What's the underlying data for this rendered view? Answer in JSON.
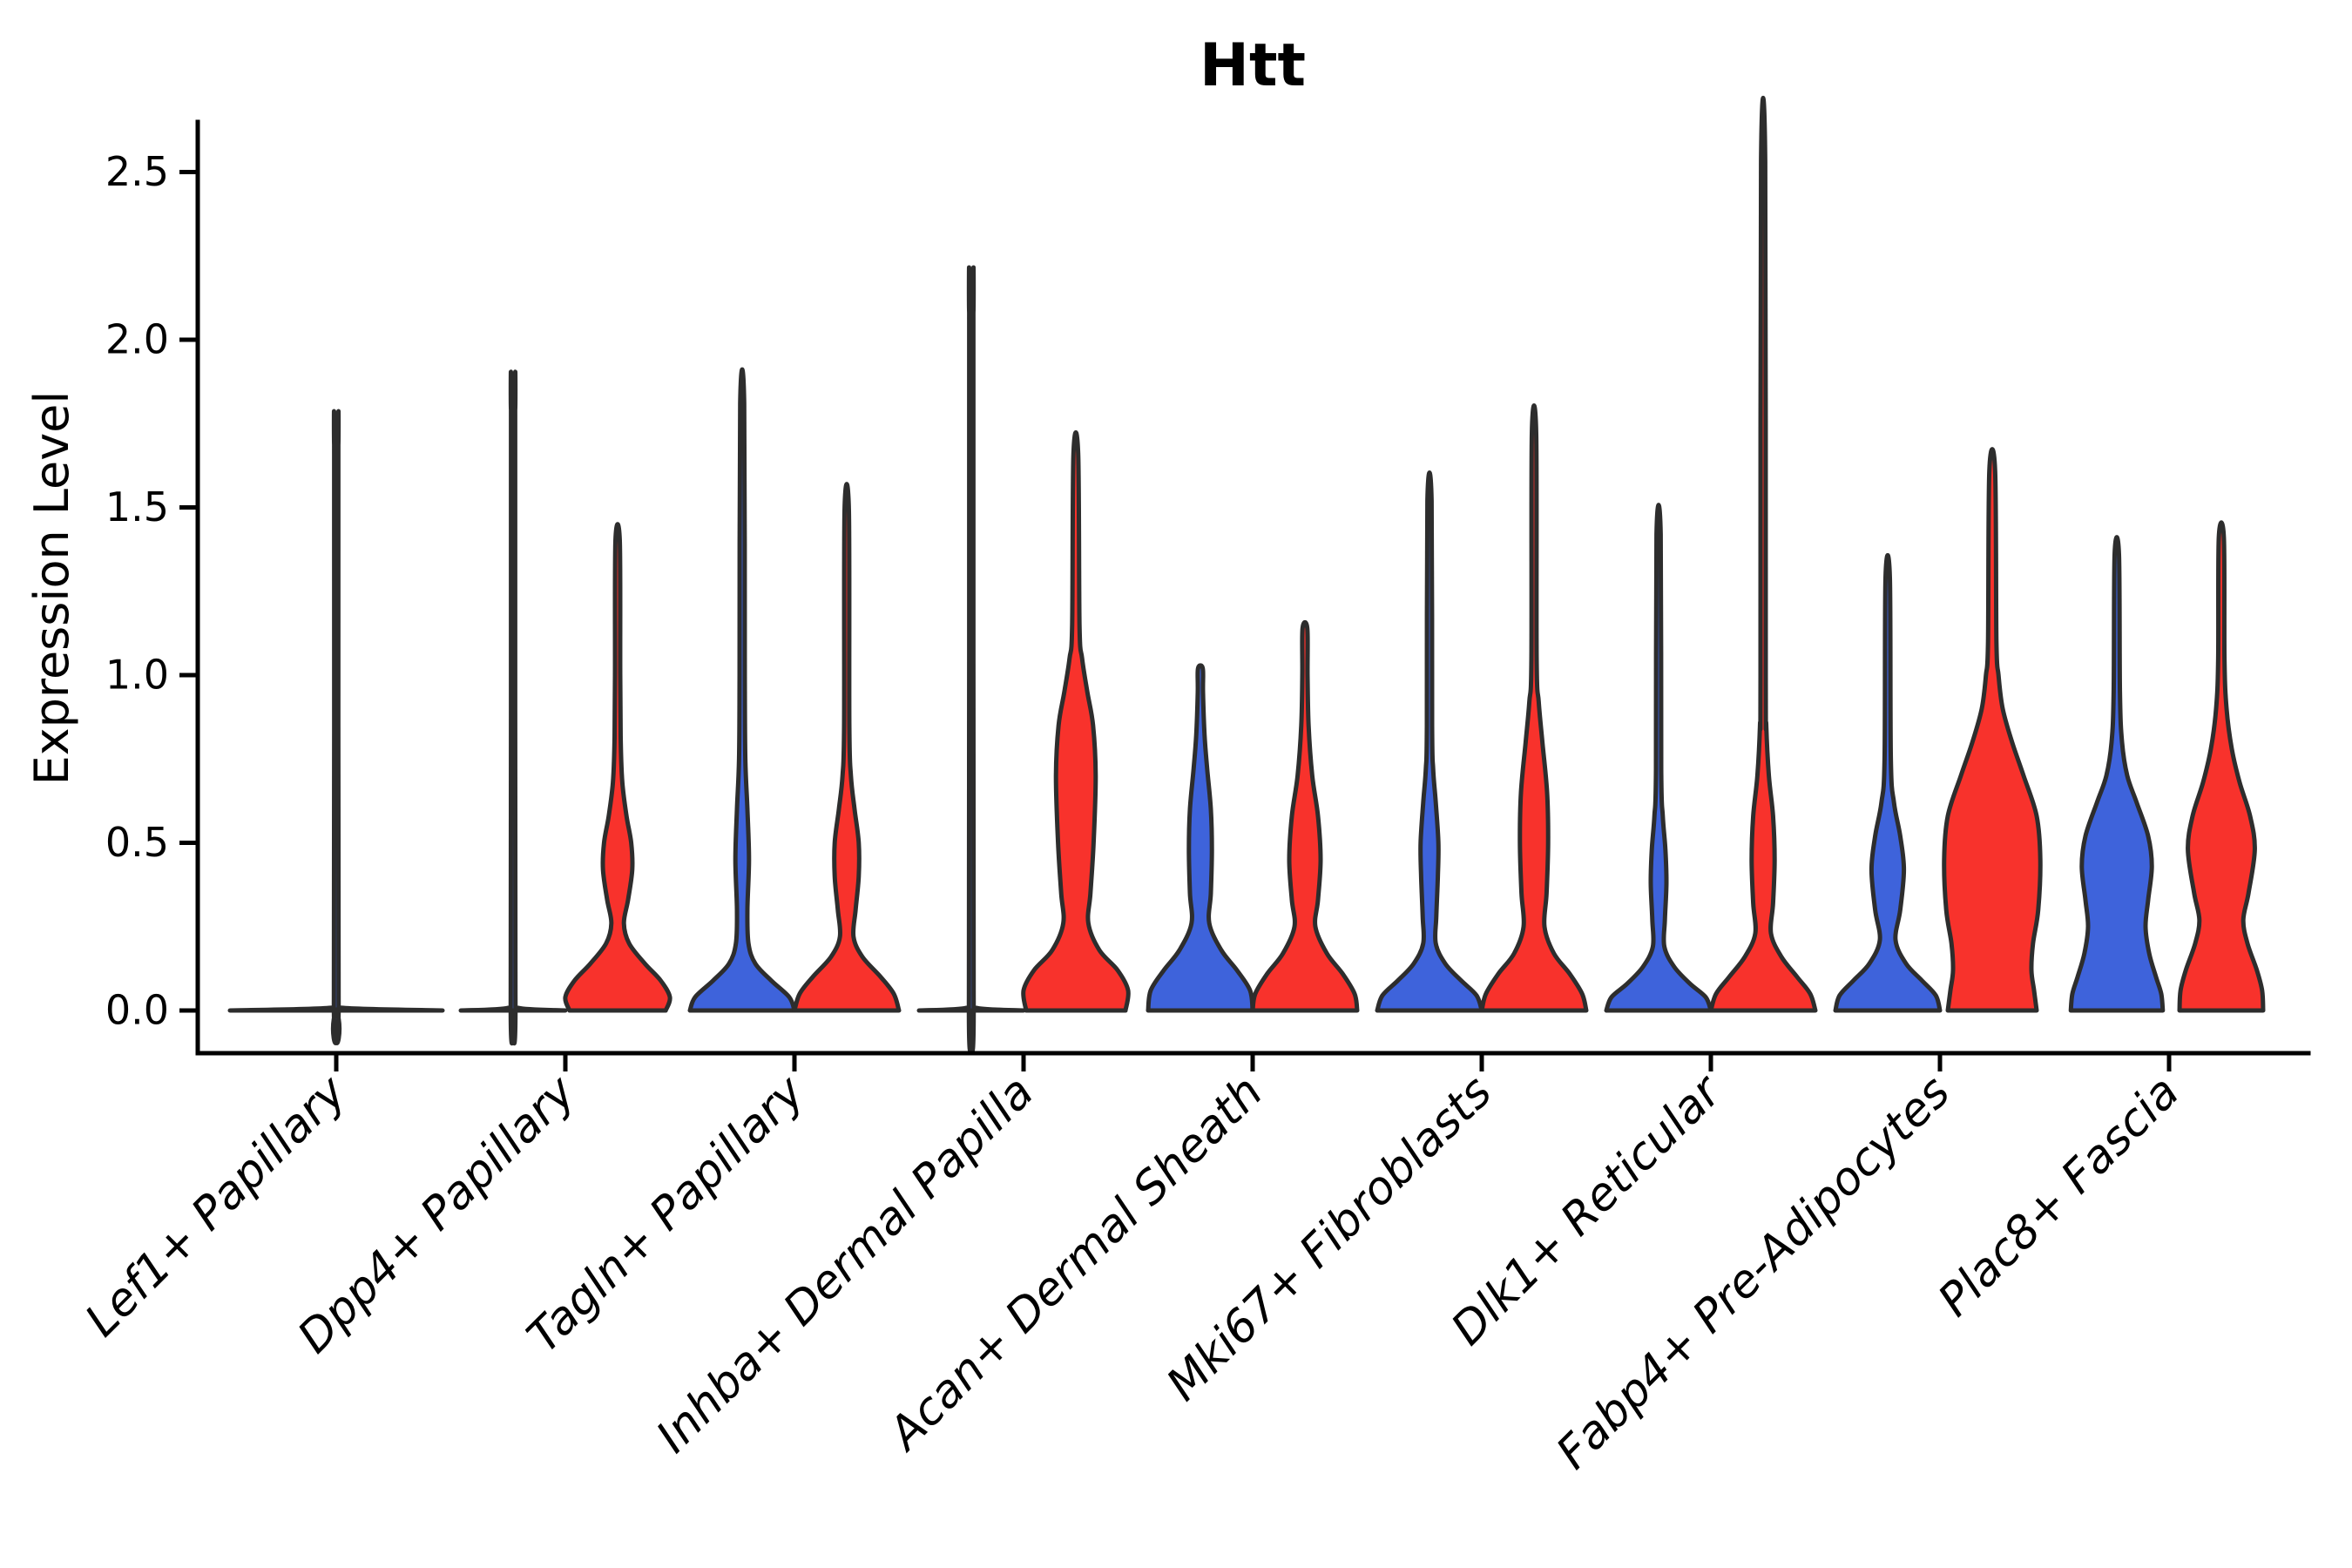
{
  "figure": {
    "title": "Htt",
    "ylabel": "Expression Level"
  },
  "colors": {
    "group_blue": "#3E63DB",
    "group_red": "#F8322C",
    "violin_outline": "#2d2d2d",
    "axis": "#000000",
    "background": "#ffffff"
  },
  "chart_data": {
    "type": "violin",
    "title": "Htt",
    "xlabel": "",
    "ylabel": "Expression Level",
    "yticks": [
      "0.0",
      "0.5",
      "1.0",
      "1.5",
      "2.0",
      "2.5"
    ],
    "ytick_values": [
      0.0,
      0.5,
      1.0,
      1.5,
      2.0,
      2.5
    ],
    "ylim": [
      -0.13,
      2.65
    ],
    "grid": false,
    "legend": "none",
    "categories": [
      "Lef1+ Papillary",
      "Dpp4+ Papillary",
      "Tagln+ Papillary",
      "Inhba+ Dermal Papilla",
      "Acan+ Dermal Sheath",
      "Mki67+ Fibroblasts",
      "Dlk1+ Reticular",
      "Fabp4+ Pre-Adipocytes",
      "Plac8+ Fascia"
    ],
    "series": [
      {
        "name": "blue",
        "color": "#3E63DB"
      },
      {
        "name": "red",
        "color": "#F8322C"
      }
    ],
    "violins": [
      {
        "category": 0,
        "group": "single",
        "max_expression": 1.68,
        "profile": [
          [
            0,
            1.0
          ],
          [
            0.008,
            0.05
          ],
          [
            0.03,
            0.022
          ],
          [
            1.66,
            0.02
          ],
          [
            1.68,
            0.018
          ]
        ]
      },
      {
        "category": 1,
        "group": "blue",
        "max_expression": 1.79,
        "profile": [
          [
            0,
            1.0
          ],
          [
            0.008,
            0.09
          ],
          [
            0.04,
            0.045
          ],
          [
            1.77,
            0.04
          ],
          [
            1.79,
            0.038
          ]
        ]
      },
      {
        "category": 1,
        "group": "red",
        "max_expression": 1.4,
        "profile": [
          [
            0,
            0.92
          ],
          [
            0.04,
            1.0
          ],
          [
            0.09,
            0.82
          ],
          [
            0.14,
            0.52
          ],
          [
            0.2,
            0.22
          ],
          [
            0.26,
            0.12
          ],
          [
            0.33,
            0.2
          ],
          [
            0.42,
            0.28
          ],
          [
            0.5,
            0.26
          ],
          [
            0.58,
            0.17
          ],
          [
            0.68,
            0.09
          ],
          [
            0.8,
            0.06
          ],
          [
            1.0,
            0.05
          ],
          [
            1.4,
            0.042
          ]
        ]
      },
      {
        "category": 2,
        "group": "blue",
        "max_expression": 1.81,
        "profile": [
          [
            0,
            1.0
          ],
          [
            0.04,
            0.9
          ],
          [
            0.09,
            0.55
          ],
          [
            0.14,
            0.25
          ],
          [
            0.2,
            0.12
          ],
          [
            0.3,
            0.1
          ],
          [
            0.45,
            0.13
          ],
          [
            0.6,
            0.1
          ],
          [
            0.75,
            0.06
          ],
          [
            1.0,
            0.05
          ],
          [
            1.81,
            0.038
          ]
        ]
      },
      {
        "category": 2,
        "group": "red",
        "max_expression": 1.49,
        "profile": [
          [
            0,
            1.0
          ],
          [
            0.05,
            0.9
          ],
          [
            0.1,
            0.65
          ],
          [
            0.16,
            0.3
          ],
          [
            0.22,
            0.13
          ],
          [
            0.3,
            0.17
          ],
          [
            0.4,
            0.23
          ],
          [
            0.5,
            0.23
          ],
          [
            0.6,
            0.15
          ],
          [
            0.7,
            0.08
          ],
          [
            0.85,
            0.05
          ],
          [
            1.49,
            0.042
          ]
        ]
      },
      {
        "category": 3,
        "group": "blue",
        "max_expression": 2.08,
        "profile": [
          [
            0,
            1.0
          ],
          [
            0.008,
            0.09
          ],
          [
            0.04,
            0.045
          ],
          [
            2.06,
            0.04
          ],
          [
            2.08,
            0.038
          ]
        ]
      },
      {
        "category": 3,
        "group": "red",
        "max_expression": 1.66,
        "profile": [
          [
            0,
            0.95
          ],
          [
            0.06,
            1.0
          ],
          [
            0.12,
            0.8
          ],
          [
            0.18,
            0.45
          ],
          [
            0.26,
            0.24
          ],
          [
            0.35,
            0.28
          ],
          [
            0.5,
            0.34
          ],
          [
            0.7,
            0.38
          ],
          [
            0.85,
            0.33
          ],
          [
            0.95,
            0.22
          ],
          [
            1.05,
            0.12
          ],
          [
            1.15,
            0.07
          ],
          [
            1.66,
            0.045
          ]
        ]
      },
      {
        "category": 4,
        "group": "blue",
        "max_expression": 1.02,
        "profile": [
          [
            0,
            1.0
          ],
          [
            0.06,
            0.95
          ],
          [
            0.12,
            0.7
          ],
          [
            0.18,
            0.4
          ],
          [
            0.26,
            0.17
          ],
          [
            0.35,
            0.2
          ],
          [
            0.48,
            0.22
          ],
          [
            0.6,
            0.2
          ],
          [
            0.72,
            0.13
          ],
          [
            0.82,
            0.08
          ],
          [
            0.95,
            0.05
          ],
          [
            1.02,
            0.045
          ]
        ]
      },
      {
        "category": 4,
        "group": "red",
        "max_expression": 1.14,
        "profile": [
          [
            0,
            1.0
          ],
          [
            0.05,
            0.95
          ],
          [
            0.11,
            0.72
          ],
          [
            0.17,
            0.42
          ],
          [
            0.25,
            0.2
          ],
          [
            0.33,
            0.25
          ],
          [
            0.45,
            0.3
          ],
          [
            0.58,
            0.25
          ],
          [
            0.7,
            0.14
          ],
          [
            0.85,
            0.07
          ],
          [
            1.0,
            0.05
          ],
          [
            1.14,
            0.045
          ]
        ]
      },
      {
        "category": 5,
        "group": "blue",
        "max_expression": 1.52,
        "profile": [
          [
            0,
            1.0
          ],
          [
            0.045,
            0.9
          ],
          [
            0.09,
            0.6
          ],
          [
            0.14,
            0.3
          ],
          [
            0.2,
            0.12
          ],
          [
            0.28,
            0.13
          ],
          [
            0.4,
            0.16
          ],
          [
            0.5,
            0.17
          ],
          [
            0.62,
            0.12
          ],
          [
            0.72,
            0.07
          ],
          [
            0.85,
            0.05
          ],
          [
            1.52,
            0.04
          ]
        ]
      },
      {
        "category": 5,
        "group": "red",
        "max_expression": 1.72,
        "profile": [
          [
            0,
            1.0
          ],
          [
            0.05,
            0.92
          ],
          [
            0.11,
            0.68
          ],
          [
            0.17,
            0.38
          ],
          [
            0.25,
            0.2
          ],
          [
            0.35,
            0.24
          ],
          [
            0.5,
            0.27
          ],
          [
            0.65,
            0.25
          ],
          [
            0.8,
            0.16
          ],
          [
            0.92,
            0.09
          ],
          [
            1.05,
            0.05
          ],
          [
            1.72,
            0.042
          ]
        ]
      },
      {
        "category": 6,
        "group": "blue",
        "max_expression": 1.42,
        "profile": [
          [
            0,
            1.0
          ],
          [
            0.04,
            0.9
          ],
          [
            0.08,
            0.6
          ],
          [
            0.13,
            0.3
          ],
          [
            0.19,
            0.11
          ],
          [
            0.27,
            0.12
          ],
          [
            0.38,
            0.15
          ],
          [
            0.48,
            0.13
          ],
          [
            0.58,
            0.08
          ],
          [
            0.72,
            0.05
          ],
          [
            1.42,
            0.04
          ]
        ]
      },
      {
        "category": 6,
        "group": "red",
        "max_expression": 2.53,
        "profile": [
          [
            0,
            1.0
          ],
          [
            0.05,
            0.9
          ],
          [
            0.1,
            0.65
          ],
          [
            0.16,
            0.35
          ],
          [
            0.23,
            0.15
          ],
          [
            0.32,
            0.19
          ],
          [
            0.45,
            0.22
          ],
          [
            0.58,
            0.19
          ],
          [
            0.7,
            0.11
          ],
          [
            0.85,
            0.06
          ],
          [
            1.0,
            0.05
          ],
          [
            2.53,
            0.04
          ]
        ]
      },
      {
        "category": 7,
        "group": "blue",
        "max_expression": 1.29,
        "profile": [
          [
            0,
            1.0
          ],
          [
            0.045,
            0.92
          ],
          [
            0.09,
            0.65
          ],
          [
            0.14,
            0.35
          ],
          [
            0.21,
            0.15
          ],
          [
            0.3,
            0.24
          ],
          [
            0.42,
            0.31
          ],
          [
            0.52,
            0.24
          ],
          [
            0.62,
            0.12
          ],
          [
            0.75,
            0.06
          ],
          [
            1.29,
            0.042
          ]
        ]
      },
      {
        "category": 7,
        "group": "red",
        "max_expression": 1.61,
        "profile": [
          [
            0,
            0.85
          ],
          [
            0.06,
            0.8
          ],
          [
            0.12,
            0.75
          ],
          [
            0.2,
            0.78
          ],
          [
            0.3,
            0.88
          ],
          [
            0.45,
            0.92
          ],
          [
            0.58,
            0.85
          ],
          [
            0.7,
            0.6
          ],
          [
            0.8,
            0.38
          ],
          [
            0.9,
            0.2
          ],
          [
            1.0,
            0.12
          ],
          [
            1.1,
            0.08
          ],
          [
            1.61,
            0.055
          ]
        ]
      },
      {
        "category": 8,
        "group": "blue",
        "max_expression": 1.36,
        "profile": [
          [
            0,
            0.88
          ],
          [
            0.05,
            0.85
          ],
          [
            0.1,
            0.75
          ],
          [
            0.17,
            0.62
          ],
          [
            0.25,
            0.55
          ],
          [
            0.33,
            0.6
          ],
          [
            0.43,
            0.67
          ],
          [
            0.52,
            0.6
          ],
          [
            0.62,
            0.38
          ],
          [
            0.7,
            0.2
          ],
          [
            0.8,
            0.1
          ],
          [
            0.95,
            0.06
          ],
          [
            1.36,
            0.042
          ]
        ]
      },
      {
        "category": 8,
        "group": "red",
        "max_expression": 1.41,
        "profile": [
          [
            0,
            0.8
          ],
          [
            0.06,
            0.78
          ],
          [
            0.12,
            0.68
          ],
          [
            0.2,
            0.5
          ],
          [
            0.27,
            0.42
          ],
          [
            0.35,
            0.52
          ],
          [
            0.48,
            0.64
          ],
          [
            0.58,
            0.55
          ],
          [
            0.68,
            0.35
          ],
          [
            0.78,
            0.2
          ],
          [
            0.9,
            0.1
          ],
          [
            1.05,
            0.06
          ],
          [
            1.41,
            0.048
          ]
        ]
      }
    ]
  }
}
